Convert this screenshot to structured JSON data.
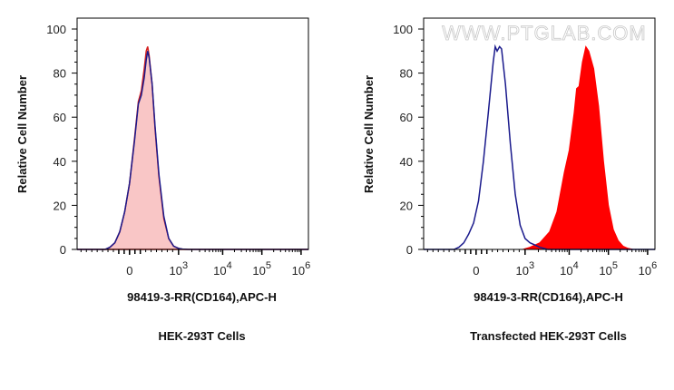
{
  "watermark": "WWW.PTGLAB.COM",
  "colors": {
    "control_line": "#1a1a8c",
    "sample_line_1": "#d42020",
    "sample_fill_1": "#f9c6c6",
    "sample_fill_2": "#ff0000"
  },
  "chart_data": [
    {
      "type": "area",
      "title": "HEK-293T Cells",
      "xlabel": "98419-3-RR(CD164),APC-H",
      "ylabel": "Relative Cell Number",
      "ylim": [
        0,
        100
      ],
      "xlim": [
        -1.07,
        3.65
      ],
      "yticks": [
        {
          "label": "0",
          "value": 0
        },
        {
          "label": "20",
          "value": 20
        },
        {
          "label": "40",
          "value": 40
        },
        {
          "label": "60",
          "value": 60
        },
        {
          "label": "80",
          "value": 80
        },
        {
          "label": "100",
          "value": 100
        }
      ],
      "xticks": [
        {
          "label": "0",
          "exp": "",
          "value": 0
        },
        {
          "label": "10",
          "exp": "3",
          "value": 1
        },
        {
          "label": "10",
          "exp": "4",
          "value": 1.9
        },
        {
          "label": "10",
          "exp": "5",
          "value": 2.7
        },
        {
          "label": "10",
          "exp": "6",
          "value": 3.5
        }
      ],
      "series": [
        {
          "name": "sample",
          "style": "filled-light",
          "x": [
            -1.07,
            -0.5,
            -0.4,
            -0.3,
            -0.2,
            -0.1,
            0,
            0.1,
            0.18,
            0.24,
            0.3,
            0.34,
            0.37,
            0.4,
            0.46,
            0.52,
            0.6,
            0.7,
            0.8,
            0.9,
            1.0,
            1.1,
            1.2,
            3.65
          ],
          "y": [
            0,
            0,
            1,
            3,
            8,
            17,
            30,
            50,
            67,
            72,
            82,
            90,
            92,
            88,
            75,
            55,
            33,
            14,
            5,
            1.5,
            0.5,
            0.1,
            0,
            0
          ]
        },
        {
          "name": "control",
          "style": "line-blue",
          "x": [
            -1.07,
            -0.5,
            -0.4,
            -0.3,
            -0.2,
            -0.1,
            0,
            0.1,
            0.18,
            0.24,
            0.3,
            0.34,
            0.37,
            0.4,
            0.46,
            0.52,
            0.6,
            0.7,
            0.8,
            0.9,
            1.0,
            1.1,
            1.2,
            3.65
          ],
          "y": [
            0,
            0,
            1,
            3,
            8,
            17,
            30,
            49,
            66,
            70,
            78,
            86,
            90,
            87,
            75,
            56,
            34,
            15,
            5,
            1.5,
            0.5,
            0.1,
            0,
            0
          ]
        }
      ]
    },
    {
      "type": "area",
      "title": "Transfected HEK-293T Cells",
      "xlabel": "98419-3-RR(CD164),APC-H",
      "ylabel": "Relative Cell Number",
      "ylim": [
        0,
        100
      ],
      "xlim": [
        -1.07,
        3.65
      ],
      "yticks": [
        {
          "label": "0",
          "value": 0
        },
        {
          "label": "20",
          "value": 20
        },
        {
          "label": "40",
          "value": 40
        },
        {
          "label": "60",
          "value": 60
        },
        {
          "label": "80",
          "value": 80
        },
        {
          "label": "100",
          "value": 100
        }
      ],
      "xticks": [
        {
          "label": "0",
          "exp": "",
          "value": 0
        },
        {
          "label": "10",
          "exp": "3",
          "value": 1
        },
        {
          "label": "10",
          "exp": "4",
          "value": 1.9
        },
        {
          "label": "10",
          "exp": "5",
          "value": 2.7
        },
        {
          "label": "10",
          "exp": "6",
          "value": 3.5
        }
      ],
      "series": [
        {
          "name": "sample",
          "style": "filled-red",
          "x": [
            -1.07,
            0.95,
            1.1,
            1.3,
            1.5,
            1.65,
            1.8,
            1.9,
            2.0,
            2.05,
            2.1,
            2.17,
            2.24,
            2.3,
            2.4,
            2.5,
            2.6,
            2.7,
            2.8,
            2.9,
            3.0,
            3.1,
            3.2,
            3.65
          ],
          "y": [
            0,
            0,
            1,
            3,
            8,
            17,
            35,
            45,
            62,
            73,
            74,
            85,
            92,
            90,
            82,
            65,
            40,
            20,
            9,
            4,
            1.5,
            0.5,
            0,
            0
          ]
        },
        {
          "name": "control",
          "style": "line-blue",
          "x": [
            -1.07,
            -0.45,
            -0.35,
            -0.25,
            -0.15,
            -0.05,
            0.05,
            0.15,
            0.25,
            0.35,
            0.39,
            0.43,
            0.48,
            0.52,
            0.6,
            0.7,
            0.8,
            0.9,
            1.0,
            1.1,
            1.2,
            1.3,
            1.46,
            3.65
          ],
          "y": [
            0,
            0,
            1,
            3,
            7,
            12,
            22,
            40,
            62,
            85,
            92,
            90,
            92,
            91,
            75,
            48,
            25,
            11,
            5,
            3,
            2,
            1,
            0,
            0
          ]
        }
      ]
    }
  ]
}
